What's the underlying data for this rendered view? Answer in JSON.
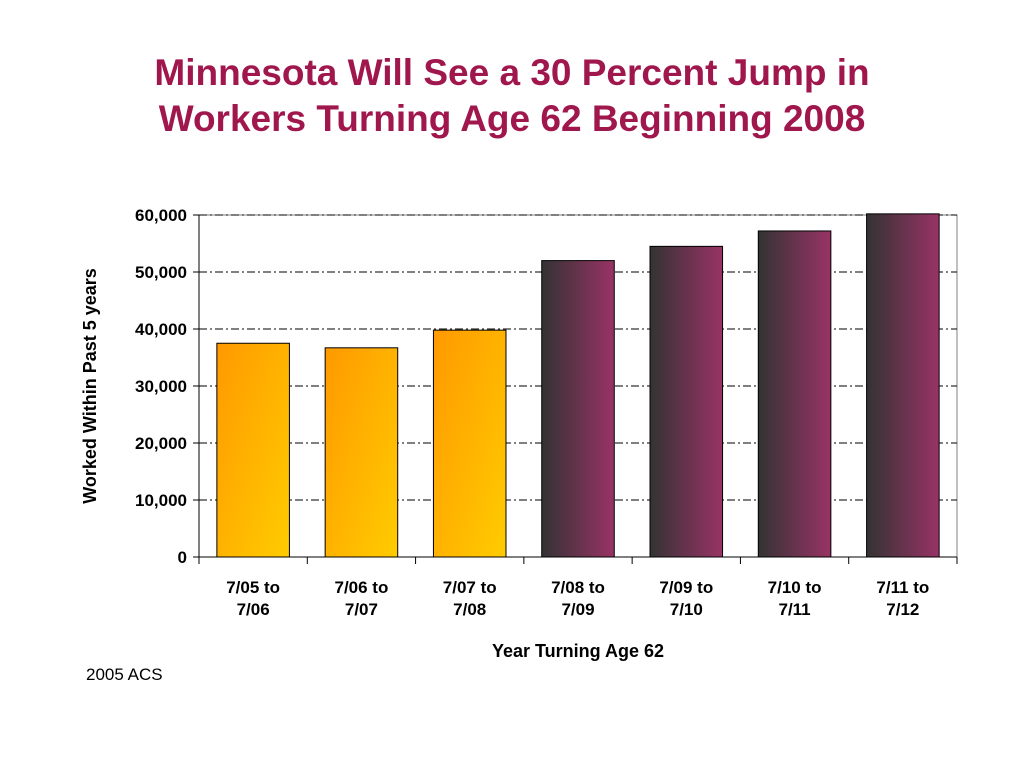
{
  "slide": {
    "title_line1": "Minnesota Will See a 30 Percent Jump in",
    "title_line2": "Workers Turning Age 62 Beginning 2008",
    "source": "2005 ACS"
  },
  "colors": {
    "title": "#a0174d",
    "past_bar_top": "#ff9900",
    "past_bar_bottom": "#ffcc00",
    "future_bar_dark": "#333333",
    "future_bar_light": "#993366"
  },
  "chart_data": {
    "type": "bar",
    "title": "",
    "xlabel": "Year Turning Age 62",
    "ylabel": "Worked Within Past 5 years",
    "ylim": [
      0,
      60000
    ],
    "yticks": [
      0,
      10000,
      20000,
      30000,
      40000,
      50000,
      60000
    ],
    "ytick_labels": [
      "0",
      "10,000",
      "20,000",
      "30,000",
      "40,000",
      "50,000",
      "60,000"
    ],
    "grid": true,
    "categories": [
      [
        "7/05 to",
        "7/06"
      ],
      [
        "7/06 to",
        "7/07"
      ],
      [
        "7/07 to",
        "7/08"
      ],
      [
        "7/08 to",
        "7/09"
      ],
      [
        "7/09 to",
        "7/10"
      ],
      [
        "7/10 to",
        "7/11"
      ],
      [
        "7/11 to",
        "7/12"
      ]
    ],
    "values": [
      37500,
      36700,
      39800,
      52000,
      54500,
      57200,
      60200
    ],
    "bar_style": [
      "past",
      "past",
      "past",
      "future",
      "future",
      "future",
      "future"
    ]
  }
}
